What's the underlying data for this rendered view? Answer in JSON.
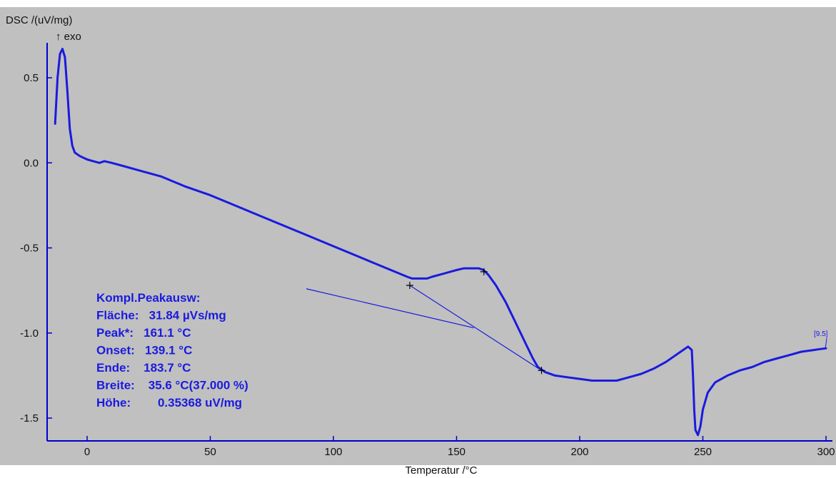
{
  "chart_data": {
    "type": "line",
    "ylabel": "DSC /(uV/mg)",
    "exo_label": "↑ exo",
    "xlabel": "Temperatur /°C",
    "xlim": [
      -15,
      301
    ],
    "ylim": [
      -1.63,
      0.7
    ],
    "x_ticks": [
      0,
      50,
      100,
      150,
      200,
      250,
      300
    ],
    "x_tick_labels": [
      "0",
      "50",
      "100",
      "150",
      "200",
      "250",
      "300"
    ],
    "y_ticks": [
      0.5,
      0.0,
      -0.5,
      -1.0,
      -1.5
    ],
    "y_tick_labels": [
      "0.5",
      "0.0",
      "-0.5",
      "-1.0",
      "-1.5"
    ],
    "grid": false,
    "colors": {
      "plot_background": "#c0c0c0",
      "curve": "#1a1adf",
      "axis": "#0000cc",
      "annotation": "#1a1adf"
    },
    "series": [
      {
        "x": [
          -13,
          -12,
          -11,
          -10,
          -9,
          -8,
          -7,
          -6,
          -5,
          -3,
          0,
          5,
          7,
          10,
          15,
          20,
          30,
          40,
          50,
          60,
          70,
          80,
          90,
          100,
          110,
          120,
          125,
          130,
          132,
          135,
          138,
          140,
          145,
          150,
          153,
          155,
          157,
          159,
          161,
          163,
          166,
          170,
          174,
          178,
          181,
          183,
          184,
          186,
          190,
          195,
          200,
          205,
          210,
          215,
          220,
          225,
          230,
          235,
          240,
          244,
          245.5,
          246,
          246.5,
          247,
          248,
          249,
          250,
          252,
          255,
          260,
          265,
          270,
          275,
          280,
          285,
          290,
          295,
          300
        ],
        "y": [
          0.23,
          0.5,
          0.64,
          0.67,
          0.62,
          0.42,
          0.2,
          0.1,
          0.06,
          0.04,
          0.02,
          0.0,
          0.01,
          0.0,
          -0.02,
          -0.04,
          -0.08,
          -0.14,
          -0.19,
          -0.25,
          -0.31,
          -0.37,
          -0.43,
          -0.49,
          -0.55,
          -0.61,
          -0.64,
          -0.67,
          -0.68,
          -0.68,
          -0.68,
          -0.67,
          -0.65,
          -0.63,
          -0.62,
          -0.62,
          -0.62,
          -0.62,
          -0.63,
          -0.66,
          -0.72,
          -0.82,
          -0.94,
          -1.06,
          -1.15,
          -1.2,
          -1.21,
          -1.23,
          -1.25,
          -1.26,
          -1.27,
          -1.28,
          -1.28,
          -1.28,
          -1.26,
          -1.24,
          -1.21,
          -1.17,
          -1.12,
          -1.08,
          -1.1,
          -1.25,
          -1.45,
          -1.57,
          -1.6,
          -1.55,
          -1.45,
          -1.35,
          -1.29,
          -1.25,
          -1.22,
          -1.2,
          -1.17,
          -1.15,
          -1.13,
          -1.11,
          -1.1,
          -1.09
        ]
      }
    ],
    "baseline_line": {
      "x": [
        89,
        157
      ],
      "y": [
        -0.74,
        -0.97
      ]
    },
    "tangent_line": {
      "x": [
        131,
        184.5
      ],
      "y": [
        -0.72,
        -1.22
      ]
    },
    "markers": {
      "x": [
        131,
        161.1,
        184.5
      ],
      "y": [
        -0.72,
        -0.64,
        -1.22
      ]
    },
    "segment_label": "[9.5]",
    "segment_label_at": {
      "x": 298,
      "y": -1.06
    },
    "annotation_lines": [
      "Kompl.Peakausw:",
      "Fläche:   31.84 µVs/mg",
      "Peak*:   161.1 °C",
      "Onset:   139.1 °C",
      "Ende:    183.7 °C",
      "Breite:    35.6 °C(37.000 %)",
      "Höhe:        0.35368 uV/mg"
    ]
  }
}
